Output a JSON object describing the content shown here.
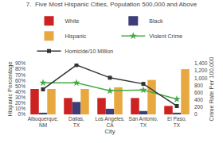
{
  "chart_data": {
    "type": "bar",
    "title": "7.  Five Most Hispanic Cities, Population 500,000 and Above",
    "categories": [
      "Albuquerque, NM",
      "Dallas, TX",
      "Los Angeles, CA",
      "San Antonio, TX",
      "El Paso, TX"
    ],
    "series": [
      {
        "name": "White",
        "type": "bar",
        "color": "#cc2222",
        "values": [
          45,
          29,
          29,
          29,
          15
        ]
      },
      {
        "name": "Black",
        "type": "bar",
        "color": "#3d3d7a",
        "values": [
          3,
          22,
          10,
          6,
          3
        ]
      },
      {
        "name": "Hispanic",
        "type": "bar",
        "color": "#e8a840",
        "values": [
          45,
          45,
          48,
          61,
          80
        ]
      },
      {
        "name": "Violent Crime",
        "type": "line",
        "axis": "y2",
        "color": "#44aa44",
        "marker": "star",
        "line_style": "solid",
        "values": [
          870,
          870,
          650,
          670,
          420
        ]
      },
      {
        "name": "Homicide/10 Million",
        "type": "line",
        "axis": "y2",
        "color": "#333333",
        "marker": "square",
        "line_style": "solid",
        "values": [
          690,
          1360,
          1010,
          840,
          230
        ]
      }
    ],
    "xlabel": "City",
    "ylabel": "Hispanic Percentage",
    "y2label": "Crime Rate Per 100,000",
    "ylim": [
      0,
      90
    ],
    "yticks": [
      {
        "value": 0,
        "label": "0%"
      },
      {
        "value": 10,
        "label": "10%"
      },
      {
        "value": 20,
        "label": "20%"
      },
      {
        "value": 30,
        "label": "30%"
      },
      {
        "value": 40,
        "label": "40%"
      },
      {
        "value": 50,
        "label": "50%"
      },
      {
        "value": 60,
        "label": "60%"
      },
      {
        "value": 70,
        "label": "70%"
      },
      {
        "value": 80,
        "label": "80%"
      },
      {
        "value": 90,
        "label": "90%"
      }
    ],
    "y2lim": [
      0,
      1400
    ],
    "y2ticks": [
      0,
      200,
      400,
      600,
      800,
      {
        "value": 1000,
        "label": "1,000"
      },
      {
        "value": 1200,
        "label": "1,200"
      },
      {
        "value": 1400,
        "label": "1,400"
      }
    ],
    "grid": false,
    "legend": "top"
  }
}
